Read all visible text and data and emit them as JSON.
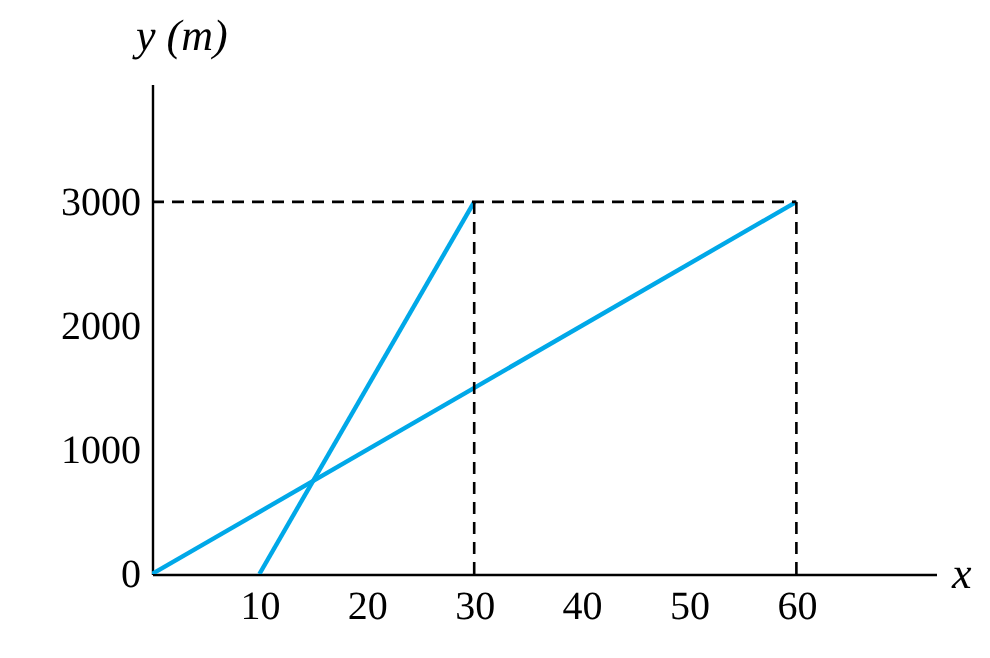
{
  "chart_data": {
    "type": "line",
    "xlabel": "x",
    "ylabel": "y (m)",
    "xlim": [
      0,
      73
    ],
    "ylim": [
      0,
      3950
    ],
    "xticks": [
      10,
      20,
      30,
      40,
      50,
      60
    ],
    "yticks": [
      {
        "value": 0,
        "label": "0"
      },
      1000,
      2000,
      3000
    ],
    "grid": false,
    "marker": "none",
    "series": [
      {
        "x": [
          0,
          60
        ],
        "values": [
          0,
          3000
        ],
        "color": "#00a8e8",
        "line_style": "solid"
      },
      {
        "x": [
          10,
          30
        ],
        "values": [
          0,
          3000
        ],
        "color": "#00a8e8",
        "line_style": "solid"
      },
      {
        "x": [
          0,
          60
        ],
        "values": [
          3000,
          3000
        ],
        "color": "#000000",
        "line_style": "dashed"
      },
      {
        "x": [
          30,
          30
        ],
        "values": [
          0,
          3000
        ],
        "color": "#000000",
        "line_style": "dashed"
      },
      {
        "x": [
          60,
          60
        ],
        "values": [
          0,
          3000
        ],
        "color": "#000000",
        "line_style": "dashed"
      }
    ]
  }
}
